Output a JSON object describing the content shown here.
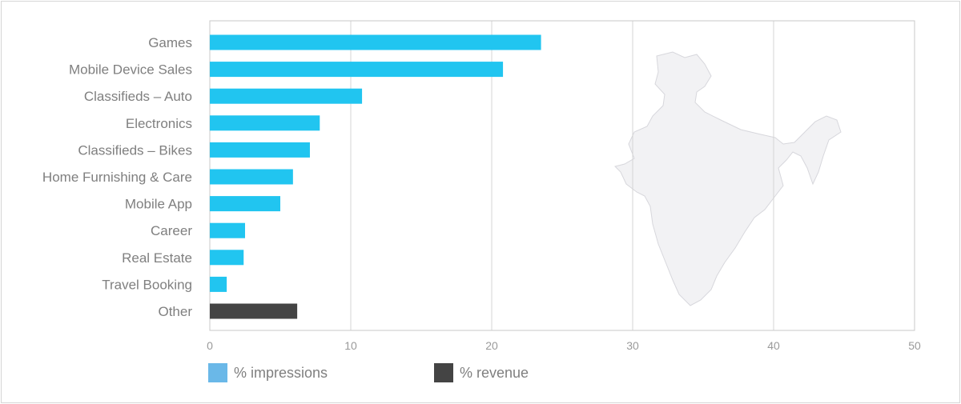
{
  "chart_data": {
    "type": "bar",
    "orientation": "horizontal",
    "categories": [
      "Games",
      "Mobile Device Sales",
      "Classifieds – Auto",
      "Electronics",
      "Classifieds – Bikes",
      "Home Furnishing & Care",
      "Mobile App",
      "Career",
      "Real Estate",
      "Travel Booking",
      "Other"
    ],
    "values": [
      23.5,
      20.8,
      10.8,
      7.8,
      7.1,
      5.9,
      5.0,
      2.5,
      2.4,
      1.2,
      6.2
    ],
    "series_of_category": [
      "% impressions",
      "% impressions",
      "% impressions",
      "% impressions",
      "% impressions",
      "% impressions",
      "% impressions",
      "% impressions",
      "% impressions",
      "% impressions",
      "% revenue"
    ],
    "xlim": [
      0,
      50
    ],
    "xticks": [
      "0",
      "10",
      "20",
      "30",
      "40",
      "50"
    ],
    "grid": "vertical",
    "legend": [
      {
        "name": "% impressions",
        "color": "#6ab8e8"
      },
      {
        "name": "% revenue",
        "color": "#444444"
      }
    ],
    "legend_placement": "bottom",
    "bar_colors": {
      "% impressions": "#21c5f0",
      "% revenue": "#444444"
    },
    "background_decoration": "india-map-silhouette"
  }
}
